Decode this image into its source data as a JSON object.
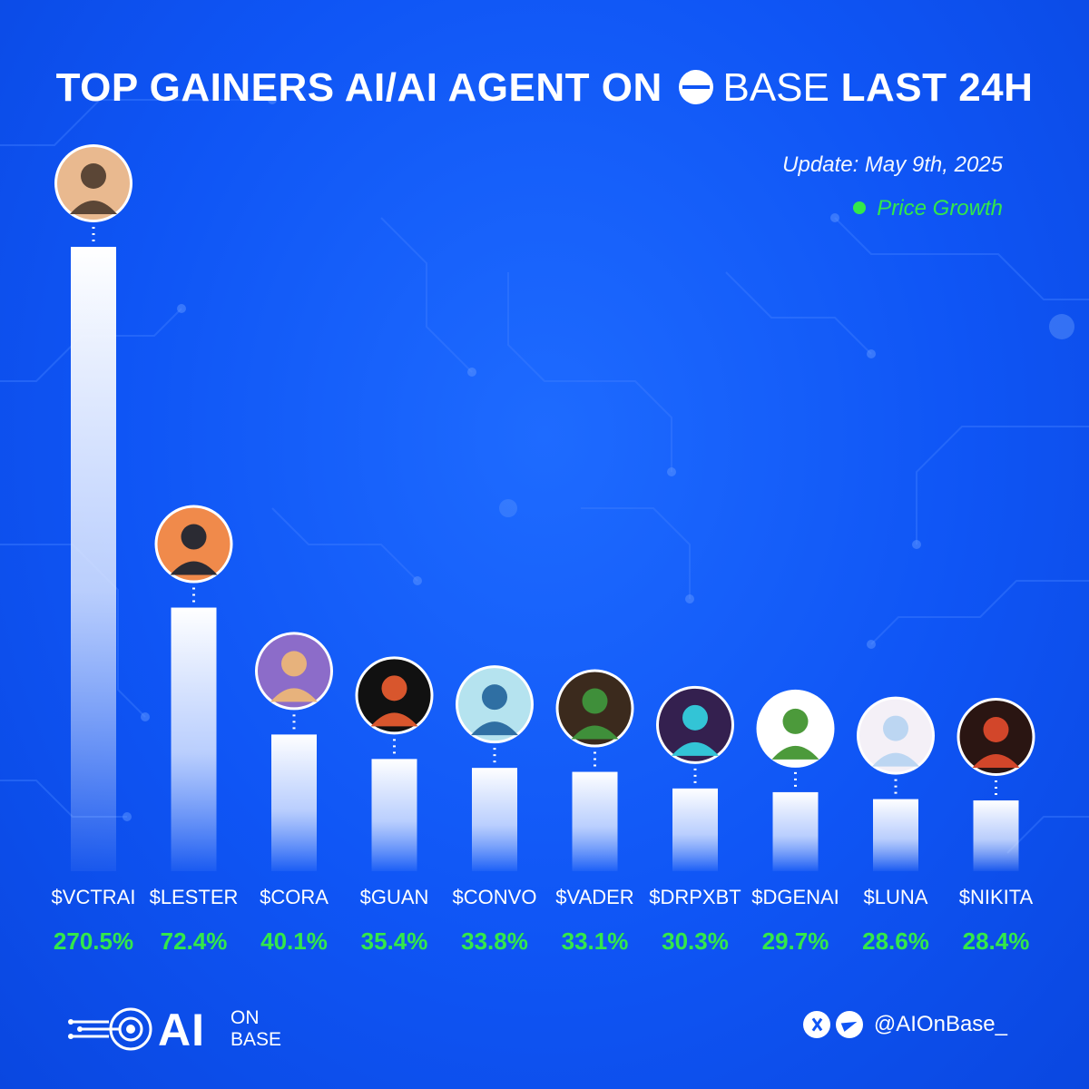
{
  "header": {
    "title_prefix": "TOP GAINERS AI/AI AGENT ON",
    "title_brand": "BASE",
    "title_suffix": "LAST 24H",
    "update": "Update: May 9th, 2025",
    "legend_label": "Price Growth"
  },
  "colors": {
    "background": "#0f55f5",
    "accent_green": "#33e84a",
    "bar_top": "#ffffff"
  },
  "chart_data": {
    "type": "bar",
    "categories": [
      "$VCTRAI",
      "$LESTER",
      "$CORA",
      "$GUAN",
      "$CONVO",
      "$VADER",
      "$DRPXBT",
      "$DGENAI",
      "$LUNA",
      "$NIKITA"
    ],
    "values": [
      270.5,
      72.4,
      40.1,
      35.4,
      33.8,
      33.1,
      30.3,
      29.7,
      28.6,
      28.4
    ],
    "value_labels": [
      "270.5%",
      "72.4%",
      "40.1%",
      "35.4%",
      "33.8%",
      "33.1%",
      "30.3%",
      "29.7%",
      "28.6%",
      "28.4%"
    ],
    "title": "TOP GAINERS AI/AI AGENT ON BASE LAST 24H",
    "xlabel": "",
    "ylabel": "",
    "legend": [
      "Price Growth"
    ],
    "legend_position": "top-right",
    "grid": false,
    "scale": "non-linear (bar heights not proportional)"
  },
  "avatar_icons": [
    "anime-girl-avatar",
    "bald-man-avatar",
    "goggles-girl-avatar",
    "sausage-character-avatar",
    "headset-girl-avatar",
    "green-man-avatar",
    "bitcoin-dj-avatar",
    "pepe-frog-avatar",
    "white-hair-girl-avatar",
    "red-hair-girl-avatar"
  ],
  "footer": {
    "logo_main": "AI",
    "logo_line1": "ON",
    "logo_line2": "BASE",
    "handle": "@AIOnBase_"
  }
}
